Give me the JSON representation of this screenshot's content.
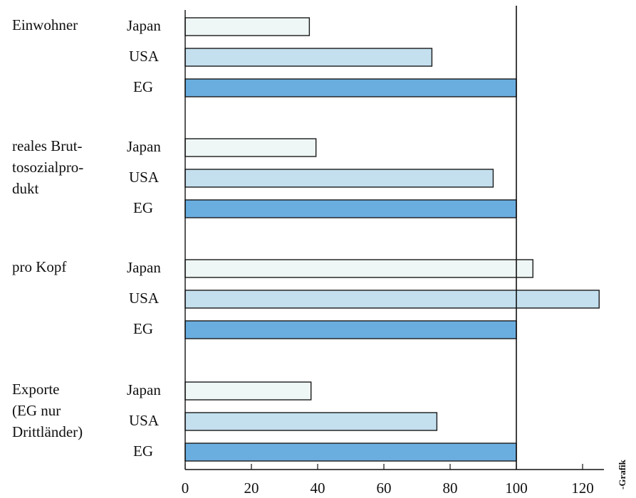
{
  "chart_data": {
    "type": "bar",
    "orientation": "horizontal",
    "title": "",
    "xlabel": "",
    "ylabel": "",
    "xlim": [
      0,
      125
    ],
    "reference_line": 100,
    "x_ticks": [
      0,
      20,
      40,
      60,
      80,
      100,
      120
    ],
    "groups": [
      {
        "label_lines": [
          "Einwohner"
        ],
        "bars": [
          {
            "country": "Japan",
            "value": 37.5
          },
          {
            "country": "USA",
            "value": 74.5
          },
          {
            "country": "EG",
            "value": 100
          }
        ]
      },
      {
        "label_lines": [
          "reales Brut-",
          "tosozialpro-",
          "dukt"
        ],
        "bars": [
          {
            "country": "Japan",
            "value": 39.5
          },
          {
            "country": "USA",
            "value": 93
          },
          {
            "country": "EG",
            "value": 100
          }
        ]
      },
      {
        "label_lines": [
          "pro Kopf"
        ],
        "bars": [
          {
            "country": "Japan",
            "value": 105
          },
          {
            "country": "USA",
            "value": 125
          },
          {
            "country": "EG",
            "value": 100
          }
        ]
      },
      {
        "label_lines": [
          "Exporte",
          "(EG nur",
          "Drittländer)"
        ],
        "bars": [
          {
            "country": "Japan",
            "value": 38
          },
          {
            "country": "USA",
            "value": 76
          },
          {
            "country": "EG",
            "value": 100
          }
        ]
      }
    ],
    "colors": {
      "Japan": "#eef7f5",
      "USA": "#c4e0ef",
      "EG": "#6aaee0"
    },
    "credit": "-Grafik"
  }
}
